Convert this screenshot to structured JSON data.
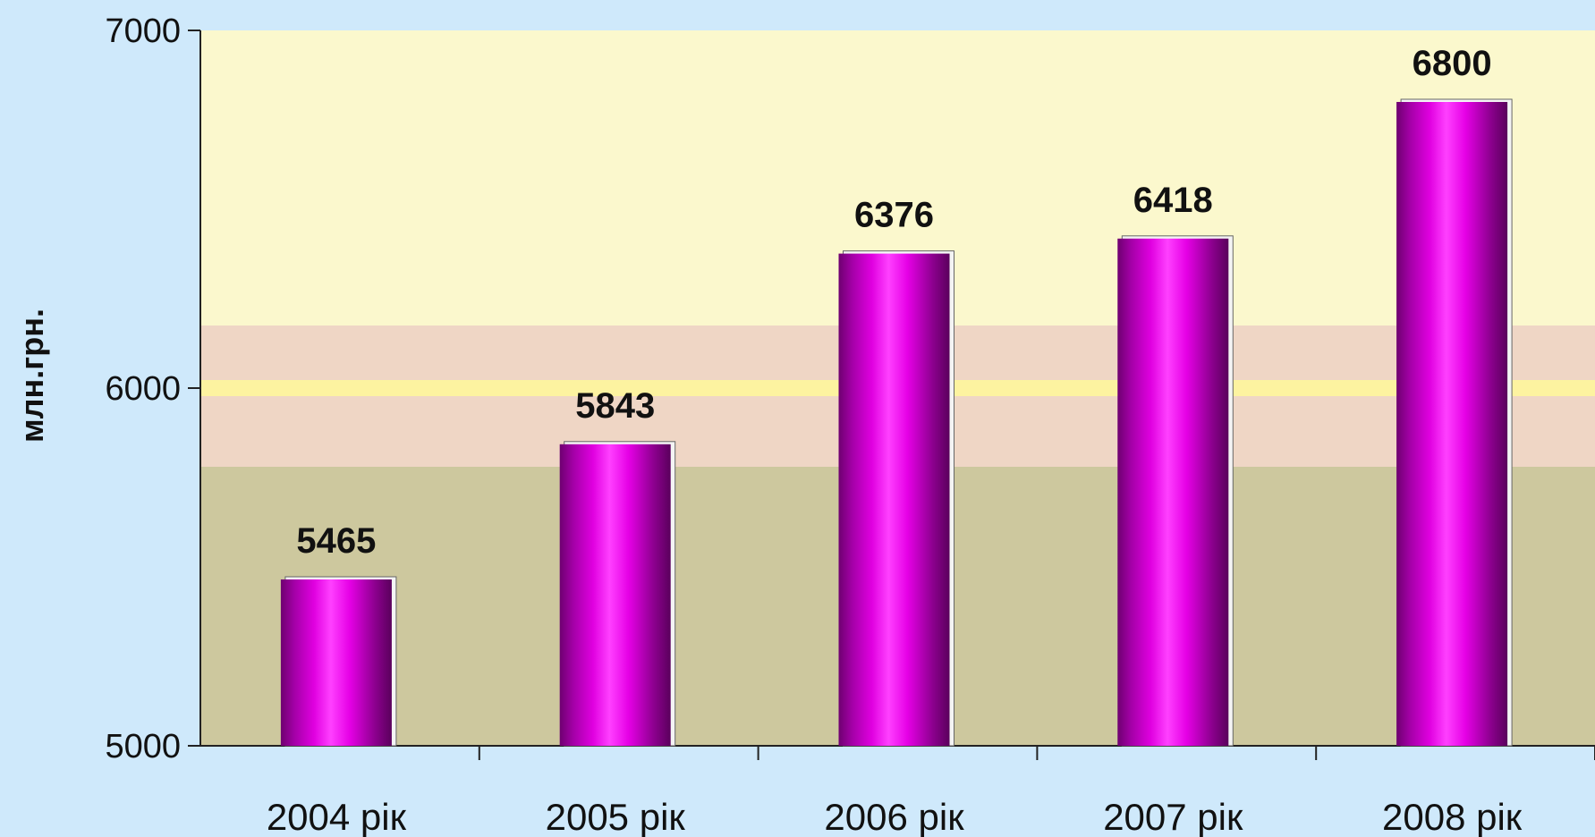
{
  "chart_data": {
    "type": "bar",
    "title": "",
    "xlabel": "",
    "ylabel": "млн.грн.",
    "ylim": [
      5000,
      7000
    ],
    "yticks": [
      5000,
      6000,
      7000
    ],
    "categories": [
      "2004 рік",
      "2005 рік",
      "2006 рік",
      "2007 рік",
      "2008 рік"
    ],
    "values": [
      5465,
      5843,
      6376,
      6418,
      6800
    ],
    "data_labels": [
      "5465",
      "5843",
      "6376",
      "6418",
      "6800"
    ],
    "grid": false,
    "legend": "none",
    "colors": {
      "background": "#cfe9fb",
      "plot_upper_band": "#fbf8cd",
      "plot_middle_band": "#efd6c5",
      "plot_middle_line": "#fdf3a0",
      "plot_lower_band": "#cdc89e",
      "bar_dark": "#6e0070",
      "bar_light": "#ff33ff",
      "bar_main": "#e600e6"
    }
  }
}
